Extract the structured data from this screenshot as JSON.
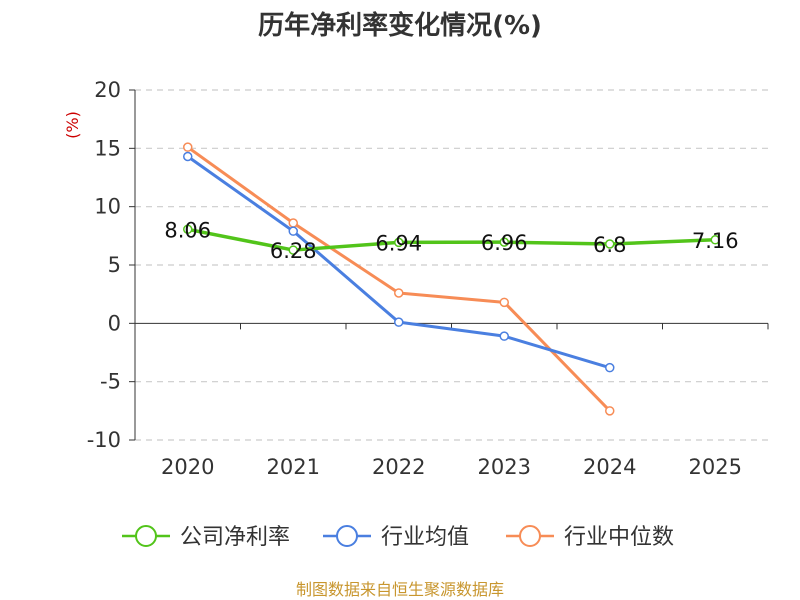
{
  "chart_data": {
    "type": "line",
    "title": "历年净利率变化情况(%)",
    "ylabel": "(%)",
    "categories": [
      "2020",
      "2021",
      "2022",
      "2023",
      "2024",
      "2025"
    ],
    "ylim": [
      -10,
      20
    ],
    "yticks": [
      "20",
      "15",
      "10",
      "5",
      "0",
      "-5",
      "-10"
    ],
    "grid": true,
    "legend_position": "bottom",
    "series": [
      {
        "name": "公司净利率",
        "color": "#52c41a",
        "values": [
          8.06,
          6.28,
          6.94,
          6.96,
          6.8,
          7.16
        ],
        "labels": [
          "8.06",
          "6.28",
          "6.94",
          "6.96",
          "6.8",
          "7.16"
        ]
      },
      {
        "name": "行业均值",
        "color": "#4a7fe0",
        "values": [
          14.3,
          7.9,
          0.1,
          -1.1,
          -3.8,
          null
        ]
      },
      {
        "name": "行业中位数",
        "color": "#f78c56",
        "values": [
          15.1,
          8.6,
          2.6,
          1.8,
          -7.5,
          null
        ]
      }
    ]
  },
  "source": "制图数据来自恒生聚源数据库"
}
